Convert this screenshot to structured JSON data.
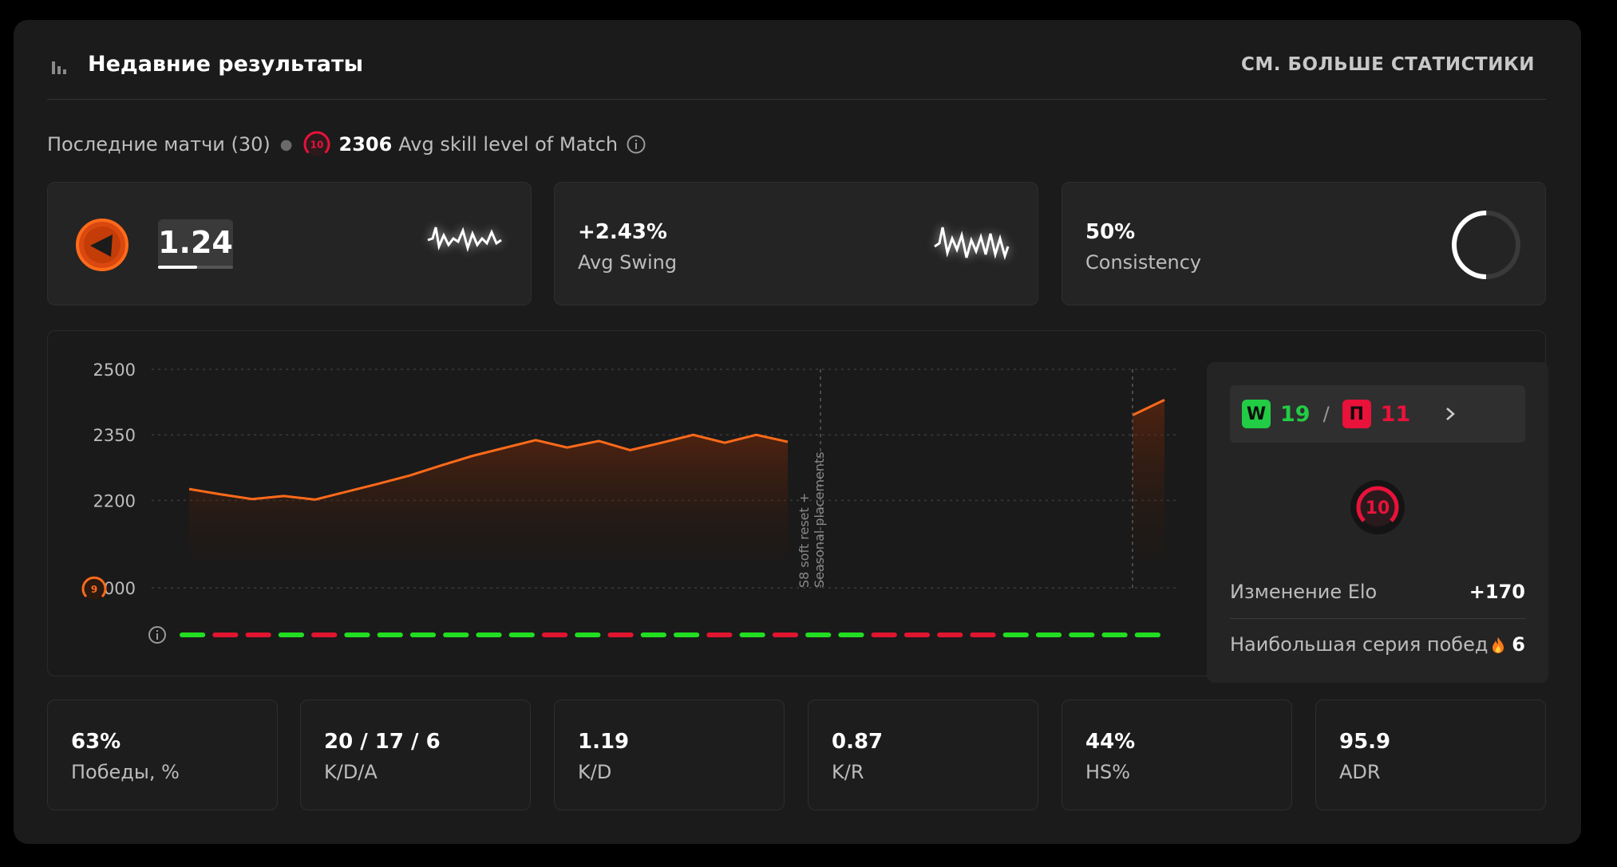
{
  "header": {
    "title": "Недавние результаты",
    "more_link": "СМ. БОЛЬШЕ СТАТИСТИКИ"
  },
  "subline": {
    "recent_matches": "Последние матчи (30)",
    "skill_level": "10",
    "avg_value": "2306",
    "avg_label": "Avg skill level of Match"
  },
  "kpis": {
    "rating": {
      "value": "1.24",
      "fill": 0.52
    },
    "swing": {
      "value": "+2.43%",
      "label": "Avg Swing"
    },
    "consistency": {
      "value": "50%",
      "label": "Consistency",
      "fraction": 0.5
    }
  },
  "chart_data": {
    "type": "area",
    "y_ticks": [
      "2500",
      "2350",
      "2200",
      "2000"
    ],
    "ylim": [
      2000,
      2500
    ],
    "segments": [
      {
        "name": "",
        "values": [
          2226,
          2214,
          2203,
          2210,
          2202,
          2220,
          2238,
          2257,
          2280,
          2302,
          2320,
          2338,
          2321,
          2336,
          2315,
          2332,
          2350,
          2332,
          2350,
          2334
        ]
      },
      {
        "name": "",
        "values": [
          2395,
          2430
        ]
      }
    ],
    "annotation": "S8 soft reset + Seasonal placements",
    "low_level_badge": "9",
    "results": [
      "W",
      "L",
      "L",
      "W",
      "L",
      "W",
      "W",
      "W",
      "W",
      "W",
      "W",
      "L",
      "W",
      "L",
      "W",
      "W",
      "L",
      "W",
      "L",
      "W",
      "W",
      "L",
      "L",
      "L",
      "L",
      "W",
      "W",
      "W",
      "W",
      "W"
    ],
    "colors": {
      "line": "#ff6a1a",
      "win": "#22dd22",
      "loss": "#e01530"
    }
  },
  "side": {
    "win_letter": "W",
    "wins": "19",
    "sep": "/",
    "loss_letter": "П",
    "losses": "11",
    "level": "10",
    "elo_change_label": "Изменение Elo",
    "elo_change_value": "+170",
    "streak_label": "Наибольшая серия побед",
    "streak_value": "6"
  },
  "stats": [
    {
      "value": "63%",
      "label": "Победы, %"
    },
    {
      "value": "20 / 17 / 6",
      "label": "K/D/A"
    },
    {
      "value": "1.19",
      "label": "K/D"
    },
    {
      "value": "0.87",
      "label": "K/R"
    },
    {
      "value": "44%",
      "label": "HS%"
    },
    {
      "value": "95.9",
      "label": "ADR"
    }
  ],
  "colors": {
    "accent": "#ff5a0a",
    "win": "#22cc44",
    "loss": "#e8123a",
    "level": "#e8123a"
  }
}
